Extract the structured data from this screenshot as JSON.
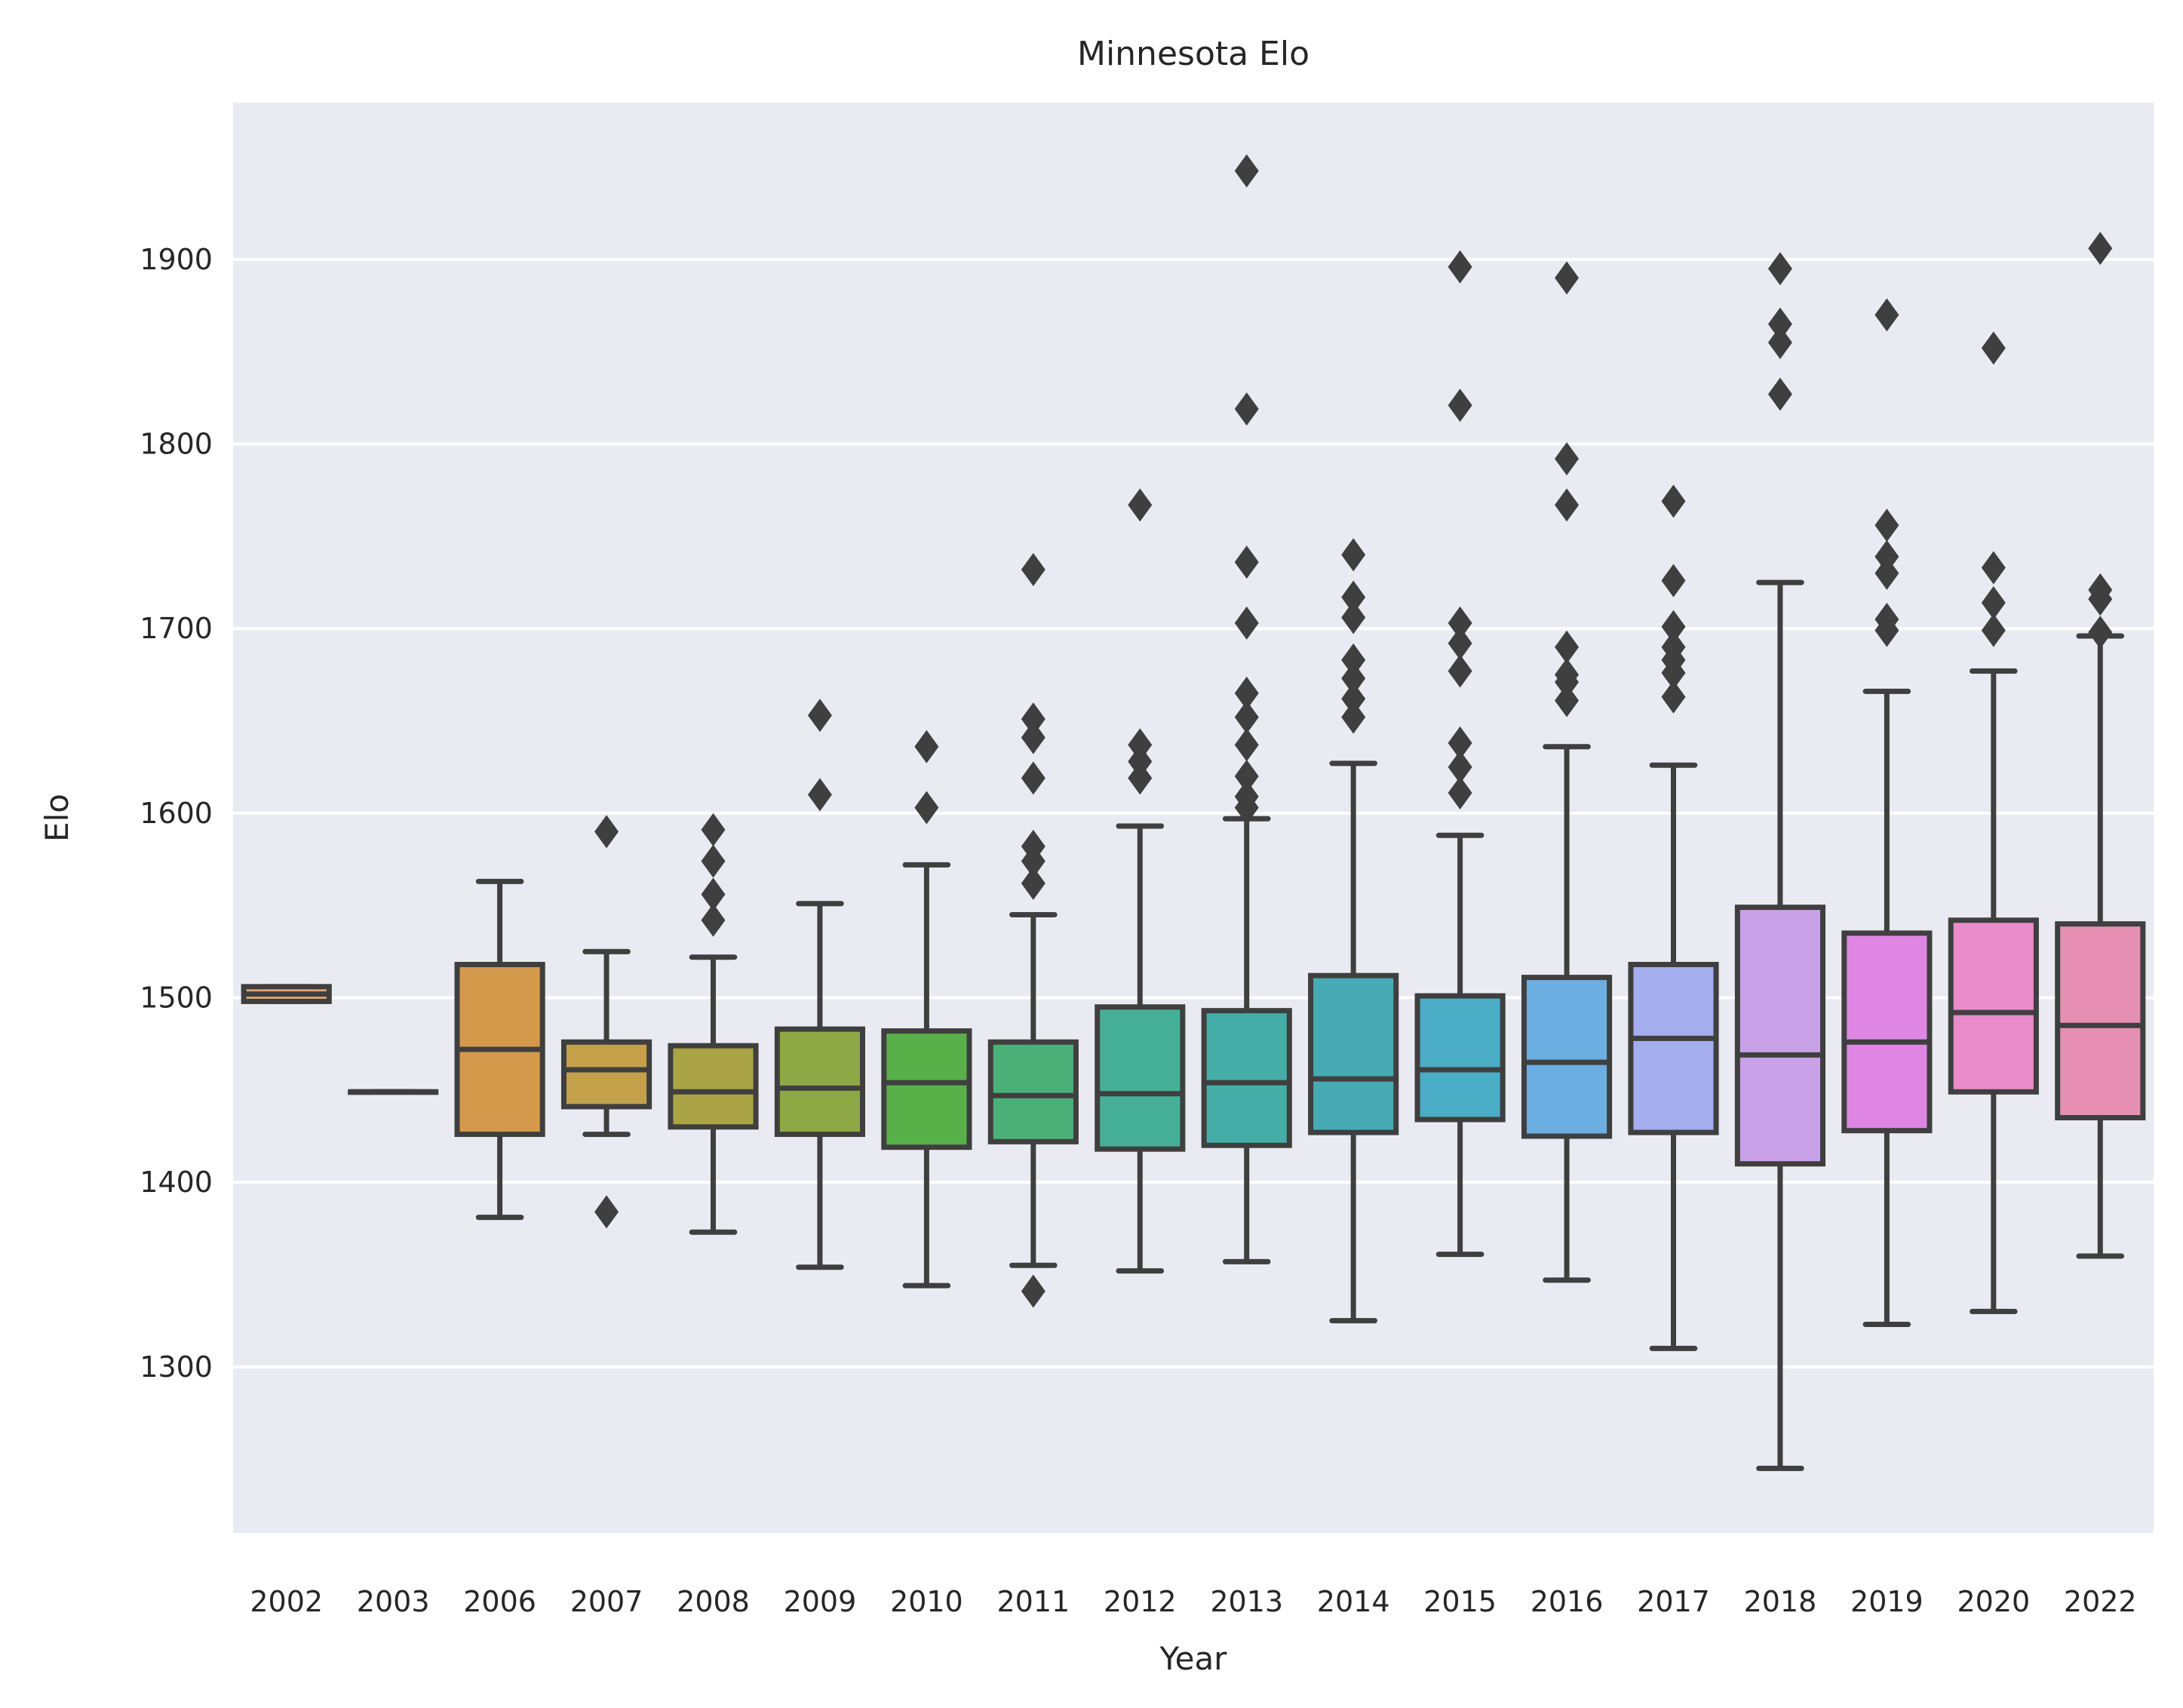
{
  "chart_data": {
    "type": "box",
    "title": "Minnesota Elo",
    "xlabel": "Year",
    "ylabel": "Elo",
    "ylim": [
      1210,
      1985
    ],
    "yticks": [
      1300,
      1400,
      1500,
      1600,
      1700,
      1800,
      1900
    ],
    "grid": true,
    "categories": [
      "2002",
      "2003",
      "2006",
      "2007",
      "2008",
      "2009",
      "2010",
      "2011",
      "2012",
      "2013",
      "2014",
      "2015",
      "2016",
      "2017",
      "2018",
      "2019",
      "2020",
      "2022"
    ],
    "boxes": [
      {
        "year": "2002",
        "whisker_low": 1498,
        "q1": 1498,
        "median": 1502,
        "q3": 1506,
        "whisker_high": 1506,
        "outliers": [],
        "color": "#e1a77a"
      },
      {
        "year": "2003",
        "whisker_low": 1449,
        "q1": 1449,
        "median": 1449,
        "q3": 1449,
        "whisker_high": 1449,
        "outliers": [],
        "color": "#dba46f"
      },
      {
        "year": "2006",
        "whisker_low": 1381,
        "q1": 1426,
        "median": 1472,
        "q3": 1518,
        "whisker_high": 1563,
        "outliers": [],
        "color": "#d5994c"
      },
      {
        "year": "2007",
        "whisker_low": 1426,
        "q1": 1441,
        "median": 1461,
        "q3": 1476,
        "whisker_high": 1525,
        "outliers": [
          1590,
          1384
        ],
        "color": "#c5a04b"
      },
      {
        "year": "2008",
        "whisker_low": 1373,
        "q1": 1430,
        "median": 1449,
        "q3": 1474,
        "whisker_high": 1522,
        "outliers": [
          1591,
          1574,
          1556,
          1542
        ],
        "color": "#aba446"
      },
      {
        "year": "2009",
        "whisker_low": 1354,
        "q1": 1426,
        "median": 1451,
        "q3": 1483,
        "whisker_high": 1551,
        "outliers": [
          1653,
          1610
        ],
        "color": "#8ea845"
      },
      {
        "year": "2010",
        "whisker_low": 1344,
        "q1": 1419,
        "median": 1454,
        "q3": 1482,
        "whisker_high": 1572,
        "outliers": [
          1636,
          1603
        ],
        "color": "#58b049"
      },
      {
        "year": "2011",
        "whisker_low": 1355,
        "q1": 1422,
        "median": 1447,
        "q3": 1476,
        "whisker_high": 1545,
        "outliers": [
          1732,
          1651,
          1641,
          1619,
          1582,
          1574,
          1562,
          1341
        ],
        "color": "#4bb077"
      },
      {
        "year": "2012",
        "whisker_low": 1352,
        "q1": 1418,
        "median": 1448,
        "q3": 1495,
        "whisker_high": 1593,
        "outliers": [
          1767,
          1637,
          1628,
          1619
        ],
        "color": "#46b097"
      },
      {
        "year": "2013",
        "whisker_low": 1357,
        "q1": 1420,
        "median": 1454,
        "q3": 1493,
        "whisker_high": 1597,
        "outliers": [
          1948,
          1819,
          1736,
          1703,
          1665,
          1652,
          1637,
          1620,
          1609,
          1603
        ],
        "color": "#45ada8"
      },
      {
        "year": "2014",
        "whisker_low": 1325,
        "q1": 1427,
        "median": 1456,
        "q3": 1512,
        "whisker_high": 1627,
        "outliers": [
          1740,
          1717,
          1706,
          1683,
          1673,
          1662,
          1652
        ],
        "color": "#47aab4"
      },
      {
        "year": "2015",
        "whisker_low": 1361,
        "q1": 1434,
        "median": 1461,
        "q3": 1501,
        "whisker_high": 1588,
        "outliers": [
          1896,
          1821,
          1703,
          1692,
          1677,
          1638,
          1625,
          1611
        ],
        "color": "#4bacc6"
      },
      {
        "year": "2016",
        "whisker_low": 1347,
        "q1": 1425,
        "median": 1465,
        "q3": 1511,
        "whisker_high": 1636,
        "outliers": [
          1890,
          1792,
          1767,
          1690,
          1675,
          1671,
          1661
        ],
        "color": "#6aaee2"
      },
      {
        "year": "2017",
        "whisker_low": 1310,
        "q1": 1427,
        "median": 1478,
        "q3": 1518,
        "whisker_high": 1626,
        "outliers": [
          1769,
          1726,
          1701,
          1690,
          1683,
          1676,
          1663
        ],
        "color": "#a4aded"
      },
      {
        "year": "2018",
        "whisker_low": 1245,
        "q1": 1410,
        "median": 1469,
        "q3": 1549,
        "whisker_high": 1725,
        "outliers": [
          1895,
          1865,
          1855,
          1827
        ],
        "color": "#c8a1e8"
      },
      {
        "year": "2019",
        "whisker_low": 1323,
        "q1": 1428,
        "median": 1476,
        "q3": 1535,
        "whisker_high": 1666,
        "outliers": [
          1870,
          1756,
          1739,
          1730,
          1705,
          1699
        ],
        "color": "#df86e5"
      },
      {
        "year": "2020",
        "whisker_low": 1330,
        "q1": 1449,
        "median": 1492,
        "q3": 1542,
        "whisker_high": 1677,
        "outliers": [
          1852,
          1733,
          1714,
          1699
        ],
        "color": "#ea8ccb"
      },
      {
        "year": "2022",
        "whisker_low": 1360,
        "q1": 1435,
        "median": 1485,
        "q3": 1540,
        "whisker_high": 1696,
        "outliers": [
          1906,
          1721,
          1716,
          1698
        ],
        "color": "#e68fb2"
      }
    ]
  }
}
